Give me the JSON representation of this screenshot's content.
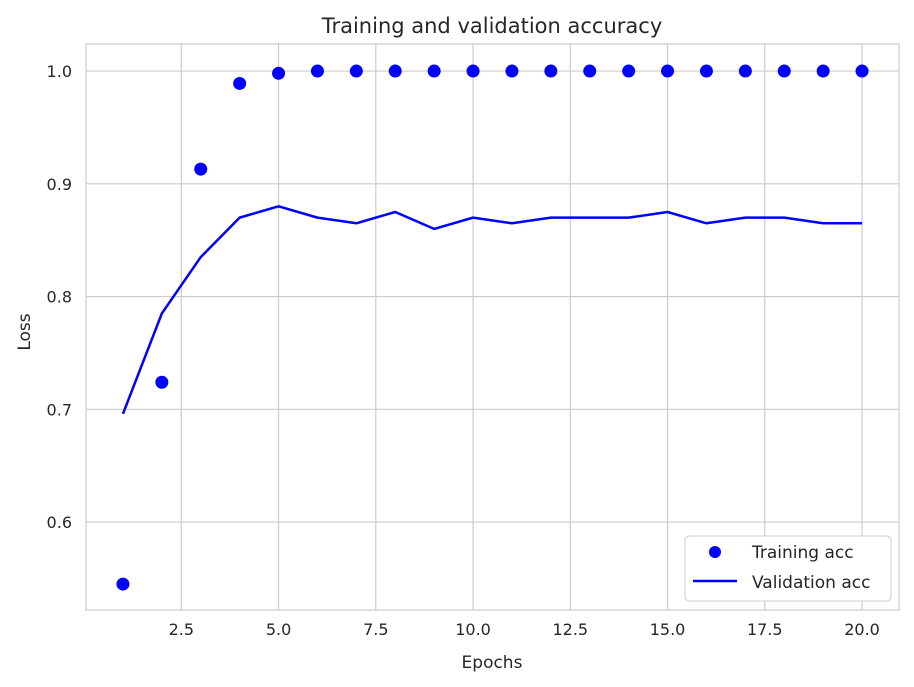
{
  "chart_data": {
    "type": "line",
    "title": "Training and validation accuracy",
    "xlabel": "Epochs",
    "ylabel": "Loss",
    "xlim": [
      0.05,
      20.95
    ],
    "ylim": [
      0.522,
      1.024
    ],
    "xticks": [
      2.5,
      5.0,
      7.5,
      10.0,
      12.5,
      15.0,
      17.5,
      20.0
    ],
    "xtick_labels": [
      "2.5",
      "5.0",
      "7.5",
      "10.0",
      "12.5",
      "15.0",
      "17.5",
      "20.0"
    ],
    "yticks": [
      0.6,
      0.7,
      0.8,
      0.9,
      1.0
    ],
    "ytick_labels": [
      "0.6",
      "0.7",
      "0.8",
      "0.9",
      "1.0"
    ],
    "grid": true,
    "legend_position": "bottom-right",
    "x": [
      1,
      2,
      3,
      4,
      5,
      6,
      7,
      8,
      9,
      10,
      11,
      12,
      13,
      14,
      15,
      16,
      17,
      18,
      19,
      20
    ],
    "series": [
      {
        "name": "Training acc",
        "style": "scatter",
        "color": "#0000ff",
        "values": [
          0.545,
          0.724,
          0.913,
          0.989,
          0.998,
          1.0,
          1.0,
          1.0,
          1.0,
          1.0,
          1.0,
          1.0,
          1.0,
          1.0,
          1.0,
          1.0,
          1.0,
          1.0,
          1.0,
          1.0
        ]
      },
      {
        "name": "Validation acc",
        "style": "line",
        "color": "#0000ff",
        "values": [
          0.696,
          0.785,
          0.835,
          0.87,
          0.88,
          0.87,
          0.865,
          0.875,
          0.86,
          0.87,
          0.865,
          0.87,
          0.87,
          0.87,
          0.875,
          0.865,
          0.87,
          0.87,
          0.865,
          0.865
        ]
      }
    ]
  }
}
